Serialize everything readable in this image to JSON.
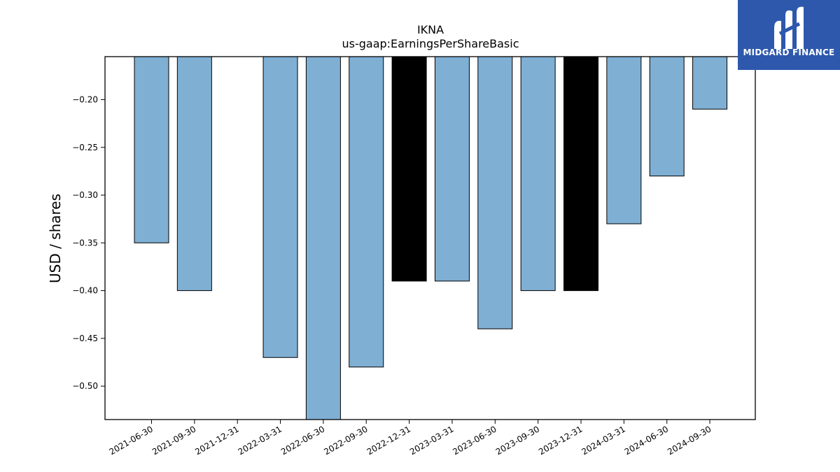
{
  "chart_data": {
    "type": "bar",
    "title": "IKNA",
    "subtitle": "us-gaap:EarningsPerShareBasic",
    "xlabel": "",
    "ylabel": "USD / shares",
    "categories": [
      "2021-06-30",
      "2021-09-30",
      "2021-12-31",
      "2022-03-31",
      "2022-06-30",
      "2022-09-30",
      "2022-12-31",
      "2023-03-31",
      "2023-06-30",
      "2023-09-30",
      "2023-12-31",
      "2024-03-31",
      "2024-06-30",
      "2024-09-30"
    ],
    "values": [
      -0.35,
      -0.4,
      null,
      -0.47,
      -0.54,
      -0.48,
      -0.39,
      -0.39,
      -0.44,
      -0.4,
      -0.4,
      -0.33,
      -0.28,
      -0.21
    ],
    "highlighted": [
      false,
      false,
      false,
      false,
      false,
      false,
      true,
      false,
      false,
      false,
      true,
      false,
      false,
      false
    ],
    "ylim": [
      -0.535,
      -0.155
    ],
    "yticks": [
      -0.2,
      -0.25,
      -0.3,
      -0.35,
      -0.4,
      -0.45,
      -0.5
    ],
    "ytick_labels": [
      "−0.20",
      "−0.25",
      "−0.30",
      "−0.35",
      "−0.40",
      "−0.45",
      "−0.50"
    ],
    "colors": {
      "bar": "#7fafd3",
      "highlight": "#000000",
      "edge": "#000000"
    },
    "grid": false,
    "legend": "none"
  },
  "logo": {
    "text": "MIDGARD FINANCE",
    "background": "#2d58ac"
  }
}
